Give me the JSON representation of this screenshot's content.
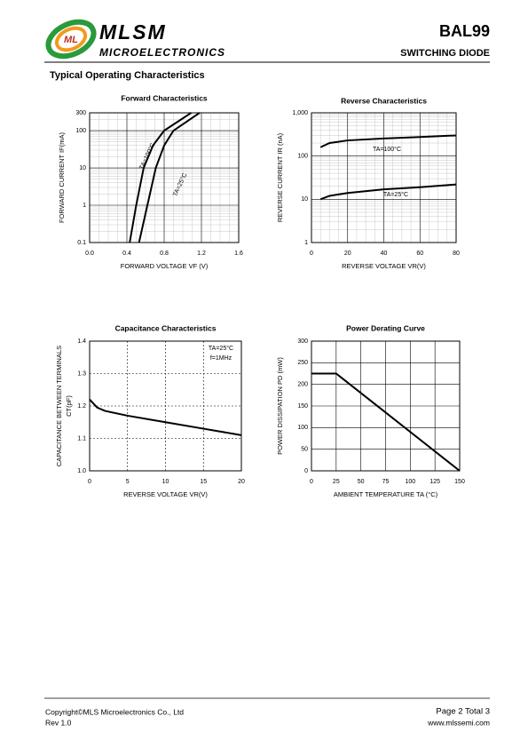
{
  "header": {
    "logo": "MLSM",
    "company": "MICROELECTRONICS",
    "part": "BAL99",
    "description": "SWITCHING DIODE"
  },
  "section_title": "Typical Operating Characteristics",
  "chart_data": [
    {
      "type": "line",
      "title": "Forward  Characteristics",
      "x_label": "FORWARD VOLTAGE  VF (V)",
      "y_label": "FORWARD CURRENT   IF(mA)",
      "xlim": [
        0,
        1.6
      ],
      "xticks": [
        {
          "value": 0,
          "label": "0.0"
        },
        0.4,
        0.8,
        1.2,
        1.6
      ],
      "ylim": [
        0.1,
        300
      ],
      "yticks": [
        0.1,
        1,
        10,
        100,
        300
      ],
      "log_y": true,
      "grid": true,
      "grid_style": "solid",
      "minor_grid": true,
      "series": [
        {
          "name": "TA=100°C",
          "color": "#000000",
          "x": [
            0.43,
            0.5,
            0.58,
            0.68,
            0.8,
            1.09
          ],
          "values": [
            0.1,
            1,
            10,
            40,
            100,
            300
          ]
        },
        {
          "name": "TA=25°C",
          "color": "#000000",
          "x": [
            0.53,
            0.62,
            0.71,
            0.8,
            0.9,
            1.18
          ],
          "values": [
            0.1,
            1,
            10,
            40,
            100,
            300
          ]
        }
      ]
    },
    {
      "type": "line",
      "title": "Reverse  Characteristics",
      "x_label": "REVERSE VOLTAGE    VR(V)",
      "y_label": "REVERSE CURRENT   IR  (nA)",
      "xlim": [
        0,
        80
      ],
      "xticks": [
        0,
        20,
        40,
        60,
        80
      ],
      "ylim": [
        1,
        1000
      ],
      "yticks": [
        1,
        10,
        100,
        {
          "value": 1000,
          "label": "1,000"
        }
      ],
      "log_y": true,
      "grid": true,
      "grid_style": "solid",
      "minor_grid": true,
      "series": [
        {
          "name": "TA=100°C",
          "color": "#000000",
          "x": [
            5,
            10,
            20,
            40,
            60,
            80
          ],
          "values": [
            160,
            200,
            230,
            255,
            275,
            300
          ]
        },
        {
          "name": "TA=25°C",
          "color": "#000000",
          "x": [
            5,
            10,
            20,
            40,
            60,
            80
          ],
          "values": [
            10,
            12,
            14,
            17,
            19,
            22
          ]
        }
      ]
    },
    {
      "type": "line",
      "title": "Capacitance Characteristics",
      "x_label": "REVERSE VOLTAGE   VR(V)",
      "y_label": [
        "CAPACITANCE BETWEEN TERMINALS",
        "CT(pF)"
      ],
      "xlim": [
        0,
        20
      ],
      "xticks": [
        0,
        5,
        10,
        15,
        20
      ],
      "ylim": [
        1.0,
        1.4
      ],
      "yticks": [
        {
          "value": 1.0,
          "label": "1.0"
        },
        1.1,
        1.2,
        1.3,
        1.4
      ],
      "grid": true,
      "grid_style": "dashed",
      "annotations": [
        "TA=25°C",
        "f=1MHz"
      ],
      "color": "#000000",
      "x": [
        0,
        1,
        2,
        5,
        10,
        15,
        20
      ],
      "values": [
        1.22,
        1.195,
        1.185,
        1.17,
        1.15,
        1.13,
        1.11
      ]
    },
    {
      "type": "line",
      "title": "Power Derating Curve",
      "x_label": "AMBIENT TEMPERATURE    TA  (°C)",
      "y_label": "POWER  DISSIPATION  PD  (mW)",
      "xlim": [
        0,
        150
      ],
      "xticks": [
        0,
        25,
        50,
        75,
        100,
        125,
        150
      ],
      "ylim": [
        0,
        300
      ],
      "yticks": [
        0,
        50,
        100,
        150,
        200,
        250,
        300
      ],
      "grid": true,
      "grid_style": "solid",
      "color": "#000000",
      "x": [
        0,
        25,
        150
      ],
      "values": [
        225,
        225,
        0
      ]
    }
  ],
  "footer": {
    "copyright": "Copyright©MLS Microelectronics Co., Ltd",
    "revision": "Rev 1.0",
    "page": "Page 2 Total 3",
    "website": "www.mlssemi.com"
  }
}
